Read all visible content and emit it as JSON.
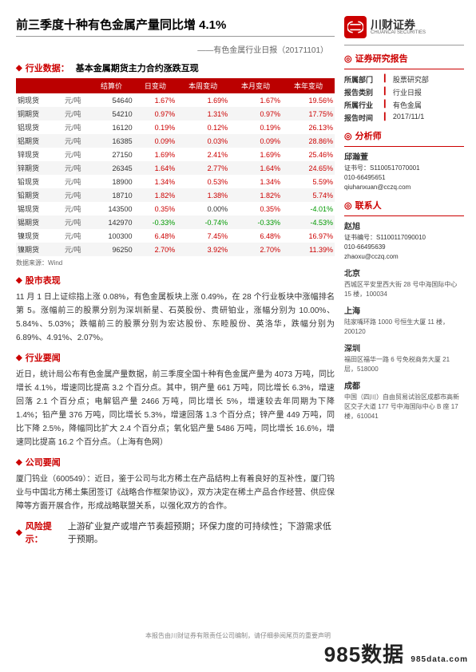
{
  "header": {
    "title": "前三季度十种有色金属产量同比增 4.1%",
    "subtitle": "——有色金属行业日报（20171101）"
  },
  "logo": {
    "cn": "川财证券",
    "en": "CHUANCAI SECURITIES"
  },
  "sections": {
    "data_head": "行业数据：",
    "data_sub": "基本金属期货主力合约涨跌互现",
    "market": "股市表现",
    "industry": "行业要闻",
    "company": "公司要闻",
    "risk": "风险提示：",
    "report": "证券研究报告",
    "analyst": "分析师",
    "contact": "联系人"
  },
  "table": {
    "cols": [
      "",
      "",
      "结算价",
      "日变动",
      "本周变动",
      "本月变动",
      "本年变动"
    ],
    "unit": "元/吨",
    "rows": [
      {
        "n": "铜现货",
        "p": "54640",
        "d": "1.67%",
        "w": "1.69%",
        "m": "1.67%",
        "y": "19.56%",
        "dp": 1,
        "wp": 1,
        "mp": 1,
        "yp": 1
      },
      {
        "n": "铜期货",
        "p": "54210",
        "d": "0.97%",
        "w": "1.31%",
        "m": "0.97%",
        "y": "17.75%",
        "dp": 1,
        "wp": 1,
        "mp": 1,
        "yp": 1
      },
      {
        "n": "铝现货",
        "p": "16120",
        "d": "0.19%",
        "w": "0.12%",
        "m": "0.19%",
        "y": "26.13%",
        "dp": 1,
        "wp": 1,
        "mp": 1,
        "yp": 1
      },
      {
        "n": "铝期货",
        "p": "16385",
        "d": "0.09%",
        "w": "0.03%",
        "m": "0.09%",
        "y": "28.86%",
        "dp": 1,
        "wp": 1,
        "mp": 1,
        "yp": 1
      },
      {
        "n": "锌现货",
        "p": "27150",
        "d": "1.69%",
        "w": "2.41%",
        "m": "1.69%",
        "y": "25.46%",
        "dp": 1,
        "wp": 1,
        "mp": 1,
        "yp": 1
      },
      {
        "n": "锌期货",
        "p": "26345",
        "d": "1.64%",
        "w": "2.77%",
        "m": "1.64%",
        "y": "24.65%",
        "dp": 1,
        "wp": 1,
        "mp": 1,
        "yp": 1
      },
      {
        "n": "铅现货",
        "p": "18900",
        "d": "1.34%",
        "w": "0.53%",
        "m": "1.34%",
        "y": "5.59%",
        "dp": 1,
        "wp": 1,
        "mp": 1,
        "yp": 1
      },
      {
        "n": "铅期货",
        "p": "18710",
        "d": "1.82%",
        "w": "1.38%",
        "m": "1.82%",
        "y": "5.74%",
        "dp": 1,
        "wp": 1,
        "mp": 1,
        "yp": 1
      },
      {
        "n": "锡现货",
        "p": "143500",
        "d": "0.35%",
        "w": "0.00%",
        "m": "0.35%",
        "y": "-4.01%",
        "dp": 1,
        "wp": 0,
        "mp": 1,
        "yp": -1
      },
      {
        "n": "锡期货",
        "p": "142970",
        "d": "-0.33%",
        "w": "-0.74%",
        "m": "-0.33%",
        "y": "-4.53%",
        "dp": -1,
        "wp": -1,
        "mp": -1,
        "yp": -1
      },
      {
        "n": "镍现货",
        "p": "100300",
        "d": "6.48%",
        "w": "7.45%",
        "m": "6.48%",
        "y": "16.97%",
        "dp": 1,
        "wp": 1,
        "mp": 1,
        "yp": 1
      },
      {
        "n": "镍期货",
        "p": "96250",
        "d": "2.70%",
        "w": "3.92%",
        "m": "2.70%",
        "y": "11.39%",
        "dp": 1,
        "wp": 1,
        "mp": 1,
        "yp": 1
      }
    ],
    "source": "数据来源：Wind"
  },
  "market_text": "11 月 1 日上证综指上涨 0.08%，有色金属板块上涨 0.49%，在 28 个行业板块中涨幅排名第 5。涨幅前三的股票分别为深圳新星、石英股份、贵研铂业，涨幅分别为 10.00%、5.84%、5.03%；跌幅前三的股票分别为宏达股份、东睦股份、英洛华，跌幅分别为 6.89%、4.91%、2.07%。",
  "industry_text": "近日，统计局公布有色金属产量数据，前三季度全国十种有色金属产量为 4073 万吨，同比增长 4.1%，增速同比提高 3.2 个百分点。其中，铜产量 661 万吨，同比增长 6.3%，增速回落 2.1 个百分点；电解铝产量 2466 万吨，同比增长 5%，增速较去年同期为下降 1.4%；铅产量 376 万吨，同比增长 5.3%，增速回落 1.3 个百分点；锌产量 449 万吨，同比下降 2.5%，降幅同比扩大 2.4 个百分点；氧化铝产量 5486 万吨，同比增长 16.6%，增速同比提高 16.2 个百分点。（上海有色网）",
  "company_text": "厦门钨业（600549）：近日，鉴于公司与北方稀土在产品结构上有着良好的互补性，厦门钨业与中国北方稀土集团签订《战略合作框架协议》，双方决定在稀土产品合作经营、供应保障等方面开展合作，形成战略联盟关系，以强化双方的合作。",
  "risk_text": "上游矿业复产或增产节奏超预期；环保力度的可持续性；下游需求低于预期。",
  "info": [
    {
      "k": "所属部门",
      "v": "股票研究部"
    },
    {
      "k": "报告类别",
      "v": "行业日报"
    },
    {
      "k": "所属行业",
      "v": "有色金属"
    },
    {
      "k": "报告时间",
      "v": "2017/11/1"
    }
  ],
  "analyst": {
    "name": "邱瀚萱",
    "cert": "证书号：S1100517070001",
    "tel": "010-66495651",
    "mail": "qiuhanxuan@cczq.com"
  },
  "contact": {
    "name": "赵旭",
    "cert": "证书编号：S1100117090010",
    "tel": "010-66495639",
    "mail": "zhaoxu@cczq.com"
  },
  "offices": [
    {
      "city": "北京",
      "addr": "西城区平安里西大街 28 号中海国际中心 15 楼，100034"
    },
    {
      "city": "上海",
      "addr": "陆家嘴环路 1000 号恒生大厦 11 楼，200120"
    },
    {
      "city": "深圳",
      "addr": "福田区福华一路 6 号免税商务大厦 21 层，518000"
    },
    {
      "city": "成都",
      "addr": "中国（四川）自由贸易试验区成都市高新区交子大道 177 号中海国际中心 B 座 17 楼，610041"
    }
  ],
  "footer": "本报告由川财证券有限责任公司编制，请仔细参阅尾页的重要声明",
  "watermark": {
    "main": "985数据",
    "sub": "985data.com"
  }
}
